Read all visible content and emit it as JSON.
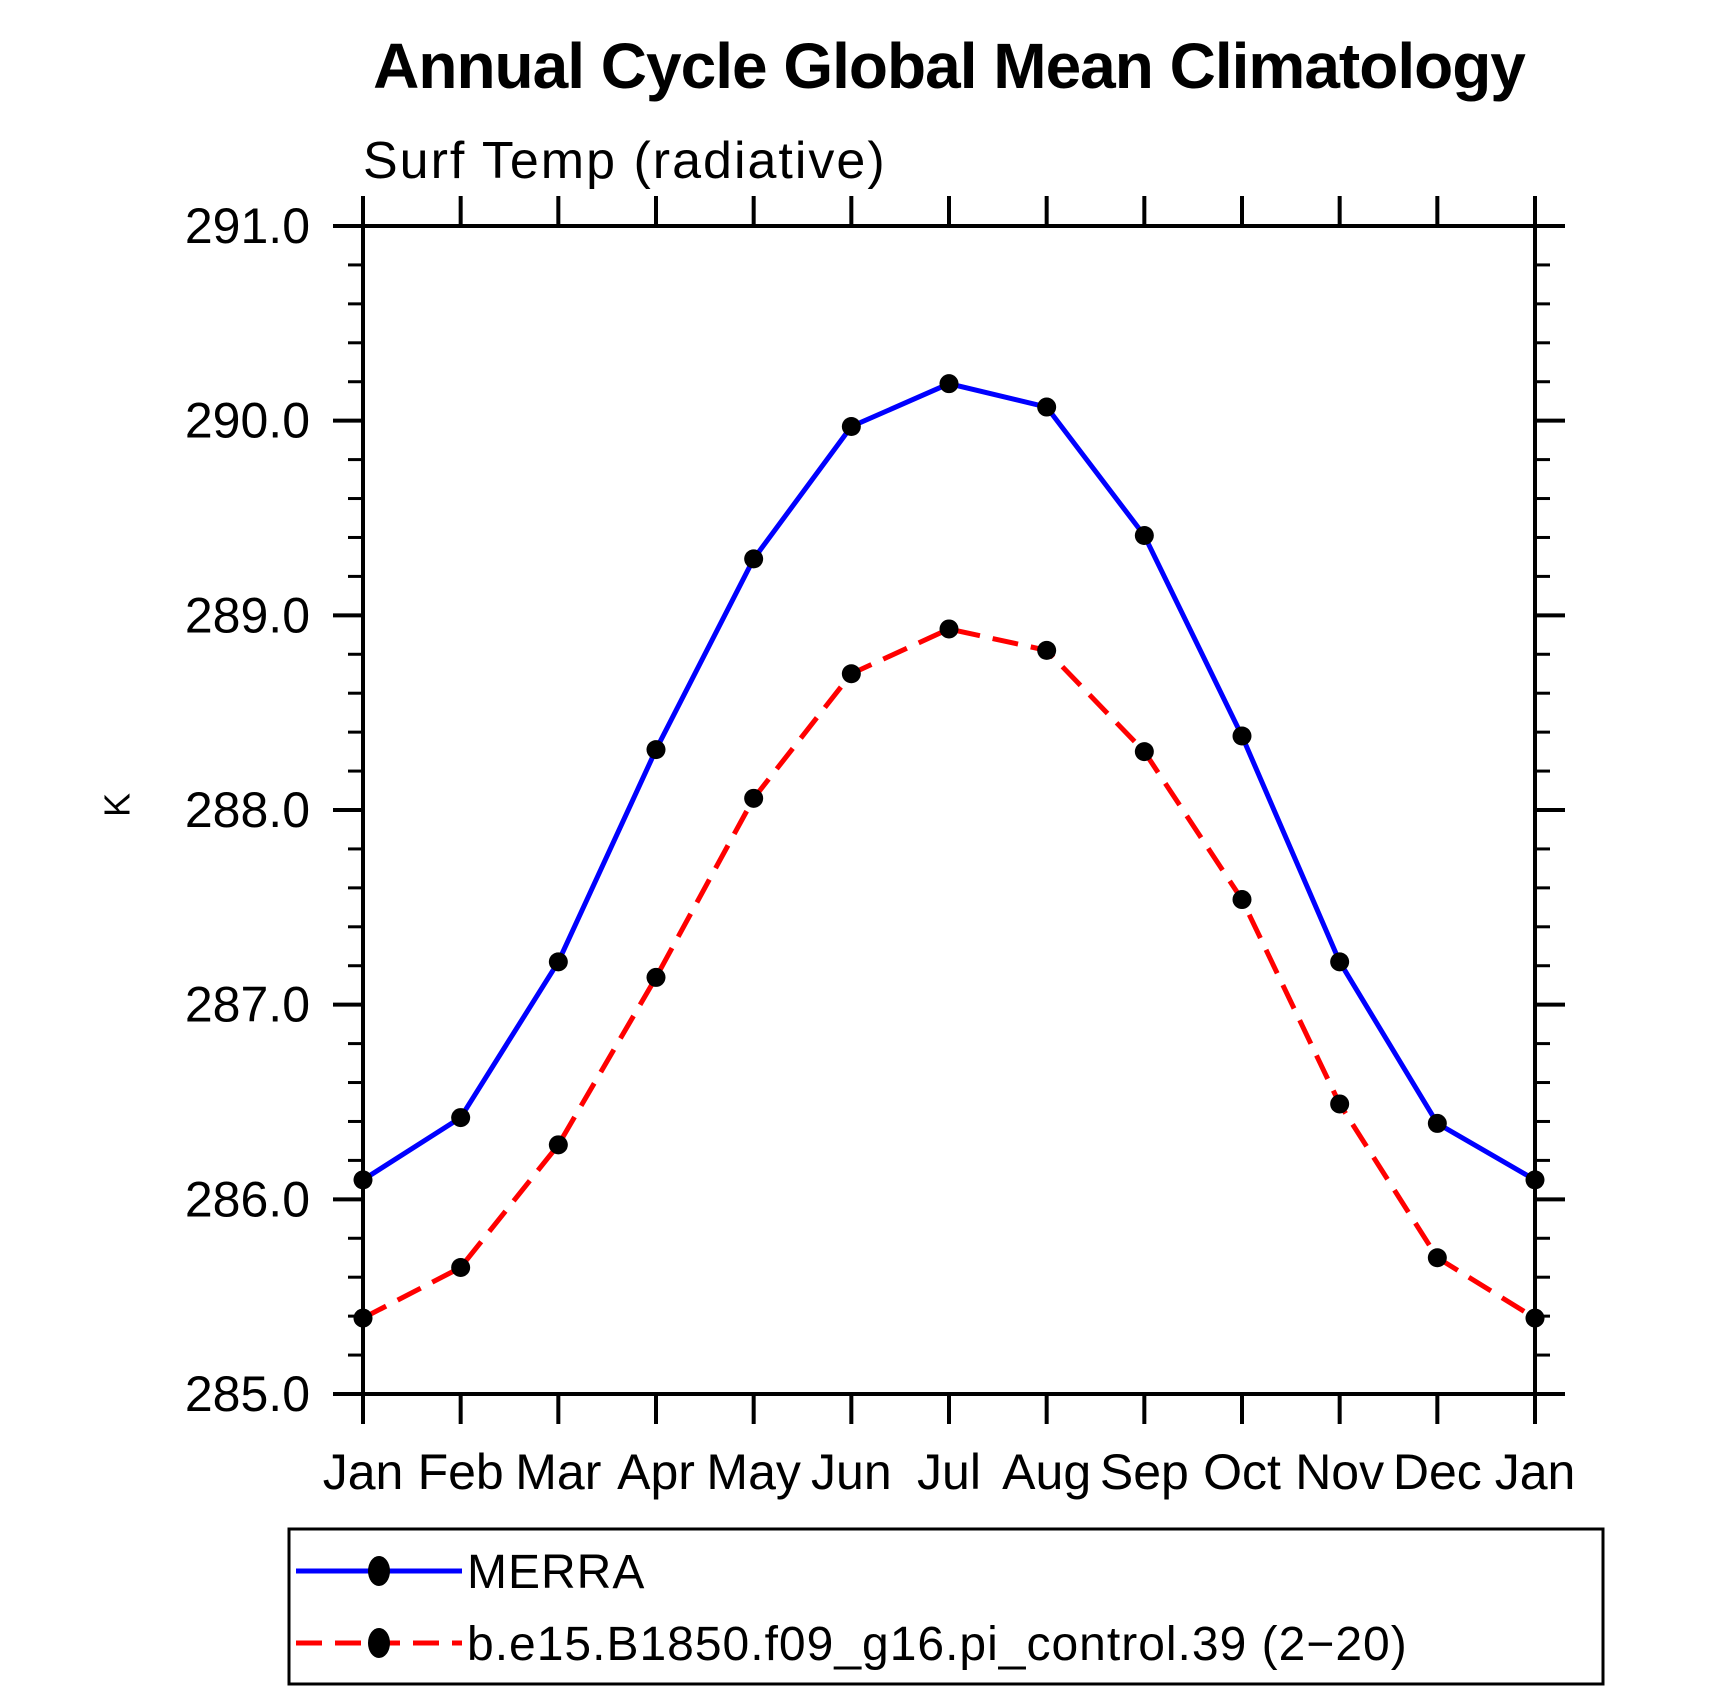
{
  "chart_data": {
    "type": "line",
    "title": "Annual Cycle Global Mean Climatology",
    "subtitle": "Surf Temp (radiative)",
    "ylabel": "K",
    "ylim": [
      285.0,
      291.0
    ],
    "y_major_step": 1.0,
    "y_minor_step": 0.2,
    "grid": false,
    "legend_position": "bottom-left-box",
    "x_tick_labels": [
      "Jan",
      "Feb",
      "Mar",
      "Apr",
      "May",
      "Jun",
      "Jul",
      "Aug",
      "Sep",
      "Oct",
      "Nov",
      "Dec",
      "Jan"
    ],
    "series": [
      {
        "name": "MERRA",
        "color": "#0000ff",
        "style": "solid",
        "marker": "black-circle",
        "values": [
          286.1,
          286.42,
          287.22,
          288.31,
          289.29,
          289.97,
          290.19,
          290.07,
          289.41,
          288.38,
          287.22,
          286.39,
          286.1
        ]
      },
      {
        "name": "b.e15.B1850.f09_g16.pi_control.39 (2−20)",
        "color": "#ff0000",
        "style": "dashed",
        "marker": "black-circle",
        "values": [
          285.39,
          285.65,
          286.28,
          287.14,
          288.06,
          288.7,
          288.93,
          288.82,
          288.3,
          287.54,
          286.49,
          285.7,
          285.39
        ]
      }
    ]
  }
}
